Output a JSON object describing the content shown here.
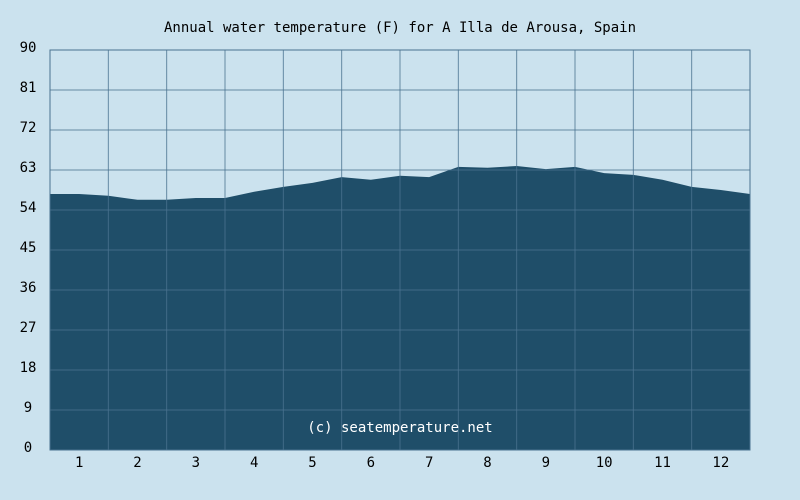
{
  "chart_data": {
    "type": "area",
    "title": "Annual water temperature (F) for A Illa de Arousa, Spain",
    "annotation": "(c) seatemperature.net",
    "categories": [
      "1",
      "2",
      "3",
      "4",
      "5",
      "6",
      "7",
      "8",
      "9",
      "10",
      "11",
      "12"
    ],
    "x": [
      0.5,
      1,
      1.5,
      2,
      2.5,
      3,
      3.5,
      4,
      4.5,
      5,
      5.5,
      6,
      6.5,
      7,
      7.5,
      8,
      8.5,
      9,
      9.5,
      10,
      10.5,
      11,
      11.5,
      12,
      12.5
    ],
    "series": [
      {
        "name": "Water temperature",
        "color": "#1f4e69",
        "values": [
          57.6,
          57.6,
          57.2,
          56.3,
          56.3,
          56.7,
          56.7,
          58.1,
          59.2,
          60.1,
          61.4,
          60.8,
          61.7,
          61.4,
          63.7,
          63.5,
          63.9,
          63.2,
          63.7,
          62.3,
          61.9,
          60.8,
          59.2,
          58.5,
          57.6
        ]
      }
    ],
    "xlim": [
      0.5,
      12.5
    ],
    "ylim": [
      0,
      90
    ],
    "yticks": [
      0,
      9,
      18,
      27,
      36,
      45,
      54,
      63,
      72,
      81,
      90
    ],
    "grid": true
  }
}
